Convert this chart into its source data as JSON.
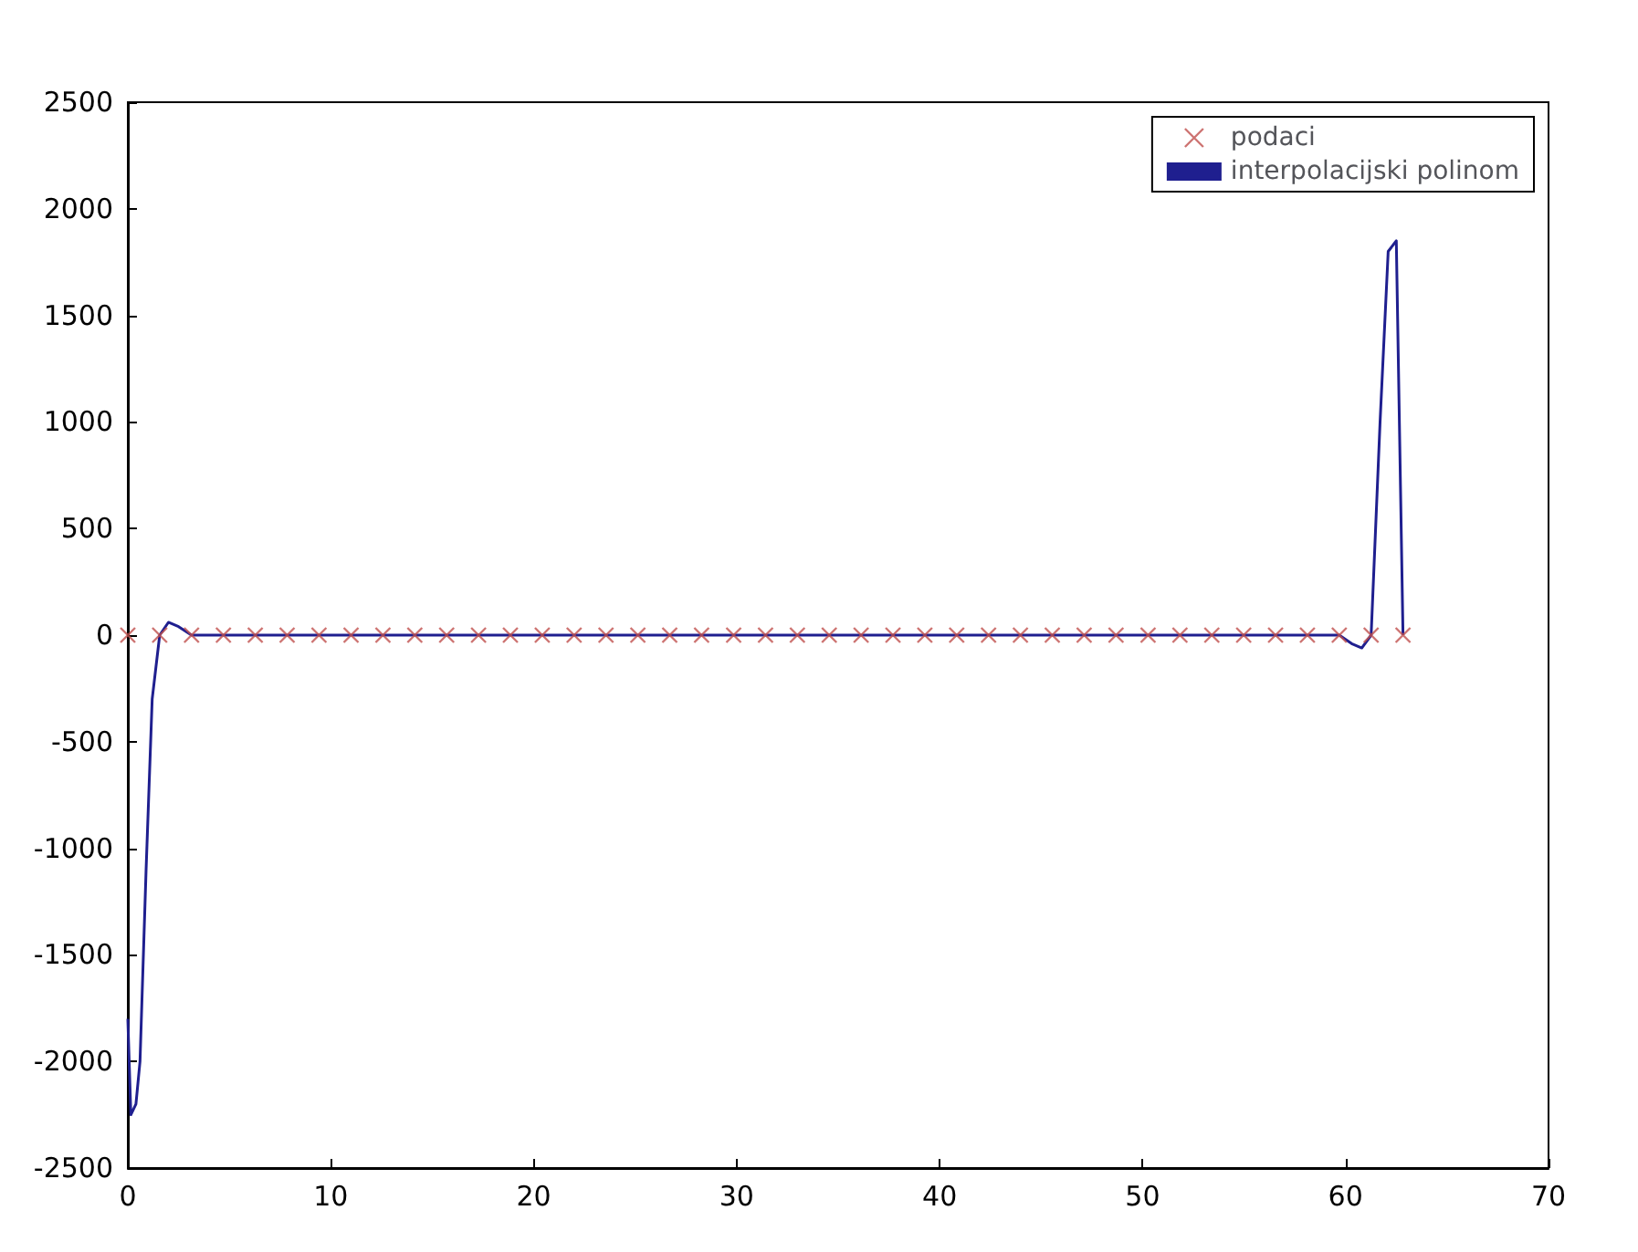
{
  "chart_data": {
    "type": "scatter",
    "series": [
      {
        "name": "podaci",
        "marker": "cross",
        "color": "#c0504d",
        "x": [
          0,
          1.57,
          3.14,
          4.71,
          6.28,
          7.85,
          9.42,
          11.0,
          12.57,
          14.14,
          15.71,
          17.28,
          18.85,
          20.42,
          21.99,
          23.56,
          25.13,
          26.7,
          28.27,
          29.85,
          31.42,
          32.99,
          34.56,
          36.13,
          37.7,
          39.27,
          40.84,
          42.41,
          43.98,
          45.55,
          47.12,
          48.69,
          50.27,
          51.84,
          53.41,
          54.98,
          56.55,
          58.12,
          59.69,
          61.26,
          62.83
        ],
        "values": [
          0,
          0,
          0,
          0,
          0,
          0,
          0,
          0,
          0,
          0,
          0,
          0,
          0,
          0,
          0,
          0,
          0,
          0,
          0,
          0,
          0,
          0,
          0,
          0,
          0,
          0,
          0,
          0,
          0,
          0,
          0,
          0,
          0,
          0,
          0,
          0,
          0,
          0,
          0,
          0,
          0
        ]
      },
      {
        "name": "interpolacijski polinom",
        "type": "line",
        "marker": "none",
        "line_style": "solid",
        "color": "#1f1f8f",
        "x": [
          0,
          0.15,
          0.4,
          0.6,
          0.9,
          1.2,
          1.57,
          2.0,
          2.5,
          3.14,
          6.28,
          12.57,
          18.85,
          25.13,
          31.42,
          37.7,
          43.98,
          50.27,
          56.55,
          59.69,
          60.3,
          60.8,
          61.26,
          61.7,
          62.1,
          62.5,
          62.83
        ],
        "values": [
          -1800,
          -2250,
          -2200,
          -2000,
          -1100,
          -300,
          0,
          60,
          40,
          0,
          0,
          0,
          0,
          0,
          0,
          0,
          0,
          0,
          0,
          0,
          -40,
          -60,
          0,
          1000,
          1800,
          1850,
          0
        ]
      }
    ],
    "xlim": [
      0,
      70
    ],
    "xticks": [
      0,
      10,
      20,
      30,
      40,
      50,
      60,
      70
    ],
    "ylim": [
      -2500,
      2500
    ],
    "yticks": [
      -2500,
      -2000,
      -1500,
      -1000,
      -500,
      0,
      500,
      1000,
      1500,
      2000,
      2500
    ],
    "grid": false,
    "legend": "top right"
  }
}
